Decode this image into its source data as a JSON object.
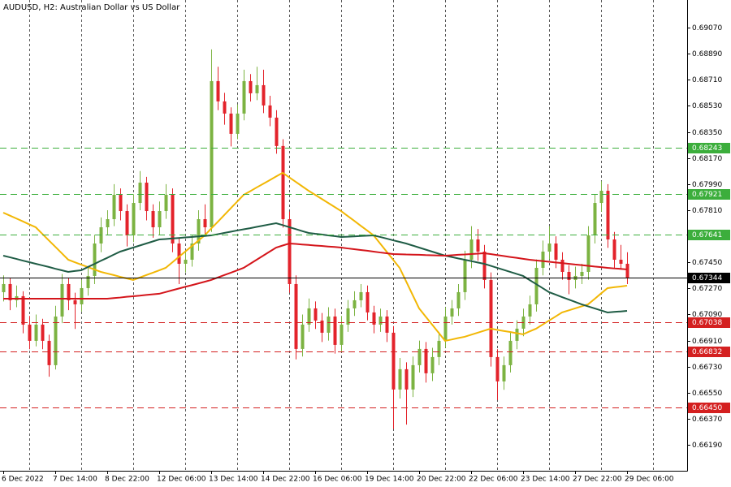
{
  "chart_data": {
    "type": "candlestick",
    "title": "AUDUSD, H2:  Australian Dollar vs US Dollar",
    "categories": [
      "6 Dec 2022",
      null,
      null,
      null,
      null,
      null,
      null,
      null,
      "7 Dec 14:00",
      null,
      null,
      null,
      null,
      null,
      null,
      null,
      "8 Dec 22:00",
      null,
      null,
      null,
      null,
      null,
      null,
      null,
      "12 Dec 06:00",
      null,
      null,
      null,
      null,
      null,
      null,
      null,
      "13 Dec 14:00",
      null,
      null,
      null,
      null,
      null,
      null,
      null,
      "14 Dec 22:00",
      null,
      null,
      null,
      null,
      null,
      null,
      null,
      "16 Dec 06:00",
      null,
      null,
      null,
      null,
      null,
      null,
      null,
      "19 Dec 14:00",
      null,
      null,
      null,
      null,
      null,
      null,
      null,
      "20 Dec 22:00",
      null,
      null,
      null,
      null,
      null,
      null,
      null,
      "22 Dec 06:00",
      null,
      null,
      null,
      null,
      null,
      null,
      null,
      "23 Dec 14:00",
      null,
      null,
      null,
      null,
      null,
      null,
      null,
      "27 Dec 22:00",
      null,
      null,
      null,
      null,
      null,
      null,
      null,
      "29 Dec 06:00"
    ],
    "candles": [
      [
        0.67244,
        0.6736,
        0.6718,
        0.673
      ],
      [
        0.673,
        0.6734,
        0.6712,
        0.67188
      ],
      [
        0.67188,
        0.6729,
        0.6714,
        0.67216
      ],
      [
        0.67216,
        0.6725,
        0.6696,
        0.6702
      ],
      [
        0.6702,
        0.6708,
        0.6685,
        0.66908
      ],
      [
        0.66908,
        0.6709,
        0.6687,
        0.6702
      ],
      [
        0.6702,
        0.6706,
        0.6685,
        0.66908
      ],
      [
        0.66908,
        0.6695,
        0.6666,
        0.6674
      ],
      [
        0.6674,
        0.6715,
        0.6671,
        0.67076
      ],
      [
        0.67076,
        0.6737,
        0.6703,
        0.673
      ],
      [
        0.673,
        0.6734,
        0.6712,
        0.67188
      ],
      [
        0.67188,
        0.6724,
        0.6699,
        0.6716
      ],
      [
        0.6716,
        0.6733,
        0.6711,
        0.67272
      ],
      [
        0.67272,
        0.6742,
        0.6722,
        0.67356
      ],
      [
        0.67356,
        0.6764,
        0.673,
        0.6758
      ],
      [
        0.6758,
        0.6776,
        0.6752,
        0.67692
      ],
      [
        0.67692,
        0.6781,
        0.6764,
        0.67748
      ],
      [
        0.67748,
        0.6799,
        0.677,
        0.67916
      ],
      [
        0.67916,
        0.6796,
        0.6774,
        0.67804
      ],
      [
        0.67804,
        0.6785,
        0.6756,
        0.67636
      ],
      [
        0.67636,
        0.6792,
        0.6759,
        0.6786
      ],
      [
        0.6786,
        0.6808,
        0.6781,
        0.68
      ],
      [
        0.68,
        0.6804,
        0.6774,
        0.67804
      ],
      [
        0.67804,
        0.6785,
        0.6762,
        0.67692
      ],
      [
        0.67692,
        0.6787,
        0.6764,
        0.67804
      ],
      [
        0.67804,
        0.6799,
        0.6775,
        0.67916
      ],
      [
        0.67916,
        0.6796,
        0.6752,
        0.6758
      ],
      [
        0.6758,
        0.6762,
        0.673,
        0.6744
      ],
      [
        0.6744,
        0.6753,
        0.6738,
        0.67468
      ],
      [
        0.67468,
        0.6764,
        0.6742,
        0.6758
      ],
      [
        0.6758,
        0.6781,
        0.6753,
        0.67748
      ],
      [
        0.67748,
        0.6785,
        0.6764,
        0.67692
      ],
      [
        0.67692,
        0.6892,
        0.6766,
        0.68701
      ],
      [
        0.68701,
        0.688,
        0.685,
        0.68561
      ],
      [
        0.68561,
        0.6862,
        0.684,
        0.68477
      ],
      [
        0.68477,
        0.6852,
        0.6825,
        0.68337
      ],
      [
        0.68337,
        0.6854,
        0.683,
        0.68477
      ],
      [
        0.68477,
        0.6878,
        0.6843,
        0.68701
      ],
      [
        0.68701,
        0.6875,
        0.6856,
        0.68617
      ],
      [
        0.68617,
        0.688,
        0.6857,
        0.68673
      ],
      [
        0.68673,
        0.6878,
        0.6848,
        0.68533
      ],
      [
        0.68533,
        0.686,
        0.6839,
        0.68449
      ],
      [
        0.68449,
        0.685,
        0.682,
        0.68253
      ],
      [
        0.68253,
        0.683,
        0.6769,
        0.67748
      ],
      [
        0.67748,
        0.678,
        0.6724,
        0.673
      ],
      [
        0.673,
        0.6736,
        0.6678,
        0.66852
      ],
      [
        0.66852,
        0.6709,
        0.668,
        0.6702
      ],
      [
        0.6702,
        0.672,
        0.6697,
        0.67132
      ],
      [
        0.67132,
        0.6718,
        0.6699,
        0.67048
      ],
      [
        0.67048,
        0.671,
        0.669,
        0.66964
      ],
      [
        0.66964,
        0.6714,
        0.6691,
        0.67076
      ],
      [
        0.67076,
        0.6713,
        0.6682,
        0.6688
      ],
      [
        0.6688,
        0.6708,
        0.6683,
        0.6702
      ],
      [
        0.6702,
        0.6719,
        0.6697,
        0.67132
      ],
      [
        0.67132,
        0.6725,
        0.6708,
        0.67188
      ],
      [
        0.67188,
        0.673,
        0.6714,
        0.67244
      ],
      [
        0.67244,
        0.6729,
        0.6705,
        0.67104
      ],
      [
        0.67104,
        0.6715,
        0.6696,
        0.6702
      ],
      [
        0.6702,
        0.6713,
        0.6697,
        0.67076
      ],
      [
        0.67076,
        0.6712,
        0.669,
        0.66964
      ],
      [
        0.66964,
        0.6701,
        0.663,
        0.66572
      ],
      [
        0.66572,
        0.6679,
        0.6651,
        0.66712
      ],
      [
        0.66712,
        0.6676,
        0.6633,
        0.66572
      ],
      [
        0.66572,
        0.668,
        0.6652,
        0.6674
      ],
      [
        0.6674,
        0.6691,
        0.6669,
        0.66852
      ],
      [
        0.66852,
        0.669,
        0.6662,
        0.66684
      ],
      [
        0.66684,
        0.6686,
        0.6663,
        0.66796
      ],
      [
        0.66796,
        0.6697,
        0.6674,
        0.66908
      ],
      [
        0.66908,
        0.6714,
        0.6686,
        0.67076
      ],
      [
        0.67076,
        0.6719,
        0.6702,
        0.67132
      ],
      [
        0.67132,
        0.673,
        0.6708,
        0.67244
      ],
      [
        0.67244,
        0.6753,
        0.6719,
        0.67468
      ],
      [
        0.67468,
        0.677,
        0.6741,
        0.67608
      ],
      [
        0.67608,
        0.6768,
        0.6746,
        0.67524
      ],
      [
        0.67524,
        0.6757,
        0.6727,
        0.67328
      ],
      [
        0.67328,
        0.6738,
        0.6673,
        0.66796
      ],
      [
        0.66796,
        0.6685,
        0.665,
        0.66628
      ],
      [
        0.66628,
        0.668,
        0.6657,
        0.6674
      ],
      [
        0.6674,
        0.6697,
        0.6669,
        0.66908
      ],
      [
        0.66908,
        0.6705,
        0.6685,
        0.66992
      ],
      [
        0.66992,
        0.6713,
        0.6694,
        0.67076
      ],
      [
        0.67076,
        0.6722,
        0.6702,
        0.6716
      ],
      [
        0.6716,
        0.6747,
        0.6711,
        0.67412
      ],
      [
        0.67412,
        0.676,
        0.6736,
        0.67524
      ],
      [
        0.67524,
        0.677,
        0.6747,
        0.6758
      ],
      [
        0.6758,
        0.6763,
        0.6741,
        0.67468
      ],
      [
        0.67468,
        0.6752,
        0.6733,
        0.67384
      ],
      [
        0.67384,
        0.6743,
        0.6723,
        0.67328
      ],
      [
        0.67328,
        0.6742,
        0.6727,
        0.67356
      ],
      [
        0.67356,
        0.6744,
        0.673,
        0.67384
      ],
      [
        0.67384,
        0.677,
        0.6733,
        0.67636
      ],
      [
        0.67636,
        0.6792,
        0.6758,
        0.6786
      ],
      [
        0.6786,
        0.6801,
        0.678,
        0.67944
      ],
      [
        0.67944,
        0.6799,
        0.6755,
        0.67608
      ],
      [
        0.67608,
        0.6766,
        0.6741,
        0.67468
      ],
      [
        0.67468,
        0.6757,
        0.674,
        0.6744
      ],
      [
        0.6744,
        0.6752,
        0.673,
        0.67344
      ]
    ],
    "up_color": "#7cb342",
    "down_color": "#e3232b",
    "series": [
      {
        "color": "#f2b705",
        "values": [
          0.67793,
          0.67773,
          0.67753,
          0.67733,
          0.67712,
          0.67692,
          0.67647,
          0.67602,
          0.67558,
          0.67513,
          0.67468,
          0.67451,
          0.67434,
          0.67418,
          0.67401,
          0.67384,
          0.67373,
          0.67362,
          0.6735,
          0.67339,
          0.67328,
          0.67345,
          0.67362,
          0.67378,
          0.67395,
          0.67412,
          0.67449,
          0.67487,
          0.67524,
          0.67561,
          0.67599,
          0.67636,
          0.67683,
          0.67729,
          0.67776,
          0.67823,
          0.67869,
          0.67916,
          0.67941,
          0.67967,
          0.67992,
          0.68017,
          0.68043,
          0.68068,
          0.68037,
          0.68006,
          0.67975,
          0.67944,
          0.67916,
          0.67888,
          0.6786,
          0.67832,
          0.67804,
          0.6777,
          0.67737,
          0.67703,
          0.6767,
          0.67636,
          0.6758,
          0.67524,
          0.67468,
          0.67412,
          0.67319,
          0.67225,
          0.67132,
          0.67076,
          0.6702,
          0.66964,
          0.66908,
          0.66917,
          0.66927,
          0.66936,
          0.6695,
          0.66964,
          0.66978,
          0.66992,
          0.66984,
          0.66976,
          0.66969,
          0.66961,
          0.66953,
          0.66973,
          0.66992,
          0.6702,
          0.67048,
          0.67076,
          0.67104,
          0.67118,
          0.67132,
          0.67146,
          0.6716,
          0.67197,
          0.67235,
          0.67272,
          0.67278,
          0.67283,
          0.67289
        ]
      },
      {
        "color": "#1f5c45",
        "values": [
          0.67496,
          0.67485,
          0.67474,
          0.67462,
          0.67451,
          0.6744,
          0.67429,
          0.67418,
          0.67406,
          0.67395,
          0.67384,
          0.6739,
          0.67395,
          0.67417,
          0.67438,
          0.6746,
          0.67481,
          0.67503,
          0.67524,
          0.67538,
          0.67552,
          0.67566,
          0.6758,
          0.67594,
          0.67608,
          0.67611,
          0.67615,
          0.67618,
          0.67622,
          0.67625,
          0.67629,
          0.67632,
          0.67636,
          0.67644,
          0.67653,
          0.67661,
          0.6767,
          0.67678,
          0.67686,
          0.67695,
          0.67703,
          0.67712,
          0.6772,
          0.67707,
          0.67693,
          0.6768,
          0.67666,
          0.67653,
          0.67647,
          0.67642,
          0.67636,
          0.67631,
          0.67625,
          0.67627,
          0.67629,
          0.67632,
          0.67634,
          0.67636,
          0.67625,
          0.67614,
          0.67602,
          0.67591,
          0.6758,
          0.67566,
          0.67552,
          0.67538,
          0.67524,
          0.6751,
          0.67496,
          0.67487,
          0.67477,
          0.67468,
          0.67459,
          0.67449,
          0.6744,
          0.67426,
          0.67412,
          0.67398,
          0.67384,
          0.6737,
          0.67356,
          0.67328,
          0.673,
          0.67272,
          0.67244,
          0.67227,
          0.6721,
          0.67194,
          0.67177,
          0.6716,
          0.67146,
          0.67132,
          0.67118,
          0.67104,
          0.67108,
          0.67111,
          0.67115
        ]
      },
      {
        "color": "#d4151b",
        "values": [
          0.67199,
          0.67199,
          0.67199,
          0.67199,
          0.67199,
          0.67199,
          0.67199,
          0.67199,
          0.67199,
          0.67199,
          0.67199,
          0.67199,
          0.67199,
          0.67199,
          0.67199,
          0.67199,
          0.67199,
          0.67203,
          0.67207,
          0.67212,
          0.67216,
          0.6722,
          0.67225,
          0.67229,
          0.67233,
          0.67245,
          0.67257,
          0.67269,
          0.67281,
          0.67292,
          0.67304,
          0.67316,
          0.67328,
          0.67345,
          0.67362,
          0.67378,
          0.67395,
          0.67412,
          0.6744,
          0.67468,
          0.67496,
          0.67524,
          0.67552,
          0.67566,
          0.6758,
          0.67577,
          0.67573,
          0.6757,
          0.67566,
          0.67563,
          0.67559,
          0.67556,
          0.67552,
          0.67546,
          0.67541,
          0.67535,
          0.6753,
          0.67524,
          0.67518,
          0.67513,
          0.67507,
          0.67506,
          0.67504,
          0.67503,
          0.67502,
          0.675,
          0.67499,
          0.67497,
          0.67496,
          0.67499,
          0.67502,
          0.67504,
          0.67507,
          0.6751,
          0.67513,
          0.67507,
          0.675,
          0.67494,
          0.67487,
          0.67481,
          0.67474,
          0.67468,
          0.67463,
          0.67459,
          0.67454,
          0.67449,
          0.67445,
          0.6744,
          0.67435,
          0.67431,
          0.67426,
          0.67421,
          0.67417,
          0.67412,
          0.67408,
          0.67405,
          0.67401
        ]
      }
    ],
    "levels": [
      {
        "value": 0.68243,
        "label": "0.68243",
        "color": "#3cae3c",
        "dashed": true
      },
      {
        "value": 0.67921,
        "label": "0.67921",
        "color": "#3cae3c",
        "dashed": true
      },
      {
        "value": 0.67641,
        "label": "0.67641",
        "color": "#3cae3c",
        "dashed": true
      },
      {
        "value": 0.67344,
        "label": "0.67344",
        "color": "#000000",
        "dashed": false
      },
      {
        "value": 0.67038,
        "label": "0.67038",
        "color": "#d42020",
        "dashed": true
      },
      {
        "value": 0.66832,
        "label": "0.66832",
        "color": "#d42020",
        "dashed": true
      },
      {
        "value": 0.6645,
        "label": "0.66450",
        "color": "#d42020",
        "dashed": true
      }
    ],
    "ylim": [
      0.66011,
      0.69261
    ],
    "yticks": [
      {
        "value": 0.6907,
        "label": "0.69070"
      },
      {
        "value": 0.6889,
        "label": "0.68890"
      },
      {
        "value": 0.6871,
        "label": "0.68710"
      },
      {
        "value": 0.6853,
        "label": "0.68530"
      },
      {
        "value": 0.6835,
        "label": "0.68350"
      },
      {
        "value": 0.6817,
        "label": "0.68170"
      },
      {
        "value": 0.6799,
        "label": "0.67990"
      },
      {
        "value": 0.6781,
        "label": "0.67810"
      },
      {
        "value": 0.6763,
        "label": "0.67630"
      },
      {
        "value": 0.6745,
        "label": "0.67450"
      },
      {
        "value": 0.6727,
        "label": "0.67270"
      },
      {
        "value": 0.6709,
        "label": "0.67090"
      },
      {
        "value": 0.6691,
        "label": "0.66910"
      },
      {
        "value": 0.6673,
        "label": "0.66730"
      },
      {
        "value": 0.6655,
        "label": "0.66550"
      },
      {
        "value": 0.6637,
        "label": "0.66370"
      },
      {
        "value": 0.6619,
        "label": "0.66190"
      }
    ],
    "grid": true
  }
}
